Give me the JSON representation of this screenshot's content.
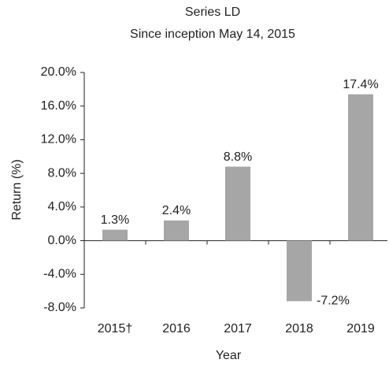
{
  "chart_data": {
    "type": "bar",
    "title": "Series LD",
    "subtitle": "Since inception May 14, 2015",
    "x_label": "Year",
    "y_label": "Return (%)",
    "categories": [
      "2015†",
      "2016",
      "2017",
      "2018",
      "2019"
    ],
    "values": [
      1.3,
      2.4,
      8.8,
      -7.2,
      17.4
    ],
    "value_labels": [
      "1.3%",
      "2.4%",
      "8.8%",
      "-7.2%",
      "17.4%"
    ],
    "color": "#a6a6a6",
    "ylim": [
      -8,
      20
    ],
    "yticks": [
      {
        "value": -8,
        "label": "-8.0%"
      },
      {
        "value": -4,
        "label": "-4.0%"
      },
      {
        "value": 0,
        "label": "0.0%"
      },
      {
        "value": 4,
        "label": "4.0%"
      },
      {
        "value": 8,
        "label": "8.0%"
      },
      {
        "value": 12,
        "label": "12.0%"
      },
      {
        "value": 16,
        "label": "16.0%"
      },
      {
        "value": 20,
        "label": "20.0%"
      }
    ],
    "grid": false
  }
}
